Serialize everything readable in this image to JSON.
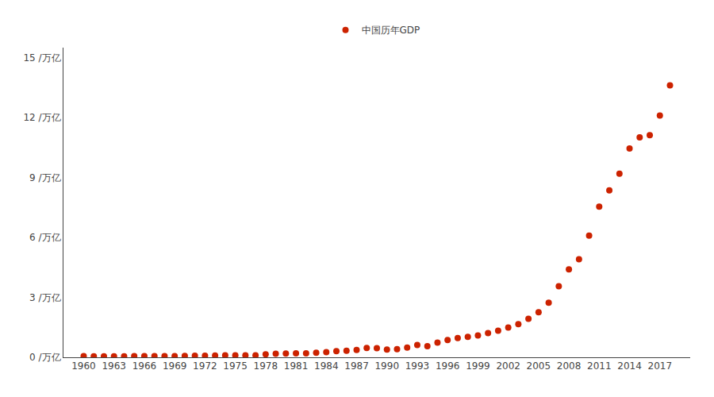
{
  "chart_data": {
    "type": "scatter",
    "x": [
      1960,
      1961,
      1962,
      1963,
      1964,
      1965,
      1966,
      1967,
      1968,
      1969,
      1970,
      1971,
      1972,
      1973,
      1974,
      1975,
      1976,
      1977,
      1978,
      1979,
      1980,
      1981,
      1982,
      1983,
      1984,
      1985,
      1986,
      1987,
      1988,
      1989,
      1990,
      1991,
      1992,
      1993,
      1994,
      1995,
      1996,
      1997,
      1998,
      1999,
      2000,
      2001,
      2002,
      2003,
      2004,
      2005,
      2006,
      2007,
      2008,
      2009,
      2010,
      2011,
      2012,
      2013,
      2014,
      2015,
      2016,
      2017,
      2018
    ],
    "series": [
      {
        "name": "中国历年GDP",
        "color": "#cc2200",
        "marker": "circle",
        "values": [
          0.0597,
          0.0506,
          0.0455,
          0.0458,
          0.0504,
          0.0587,
          0.0637,
          0.0611,
          0.059,
          0.0636,
          0.0731,
          0.0775,
          0.0818,
          0.0913,
          0.096,
          0.0986,
          0.0985,
          0.1016,
          0.1495,
          0.1777,
          0.1893,
          0.1955,
          0.203,
          0.226,
          0.2609,
          0.3108,
          0.3286,
          0.3718,
          0.471,
          0.4537,
          0.3878,
          0.4094,
          0.4886,
          0.6131,
          0.5595,
          0.7322,
          0.8631,
          0.9605,
          1.0229,
          1.0899,
          1.2113,
          1.332,
          1.4863,
          1.6566,
          1.9316,
          2.2574,
          2.731,
          3.5544,
          4.4017,
          4.9095,
          6.0879,
          7.5374,
          8.3518,
          9.1928,
          10.4491,
          11.0064,
          11.1198,
          12.1002,
          13.6082
        ]
      }
    ],
    "xlim": [
      1958,
      2020
    ],
    "xticks": [
      1960,
      1963,
      1966,
      1969,
      1972,
      1975,
      1978,
      1981,
      1984,
      1987,
      1990,
      1993,
      1996,
      1999,
      2002,
      2005,
      2008,
      2011,
      2014,
      2017
    ],
    "ylim": [
      0,
      15.5
    ],
    "yticks": [
      {
        "value": 0,
        "label": "0 /万亿"
      },
      {
        "value": 3,
        "label": "3 /万亿"
      },
      {
        "value": 6,
        "label": "6 /万亿"
      },
      {
        "value": 9,
        "label": "9 /万亿"
      },
      {
        "value": 12,
        "label": "12 /万亿"
      },
      {
        "value": 15,
        "label": "15 /万亿"
      }
    ],
    "grid": false,
    "legend": "top"
  }
}
